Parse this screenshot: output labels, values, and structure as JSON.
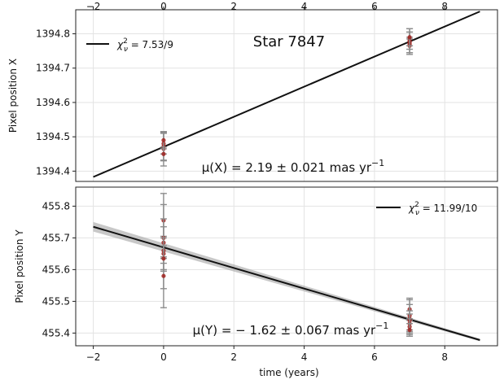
{
  "chart_data": [
    {
      "type": "scatter",
      "panel": "top",
      "title": "Star 7847",
      "xlabel": "",
      "ylabel": "Pixel position X",
      "xlim": [
        -2.5,
        9.5
      ],
      "ylim": [
        1394.37,
        1394.87
      ],
      "x_ticks": [
        -2,
        0,
        2,
        4,
        6,
        8
      ],
      "x_tick_labels": [
        "−2",
        "0",
        "2",
        "4",
        "6",
        "8"
      ],
      "y_ticks": [
        1394.4,
        1394.5,
        1394.6,
        1394.7,
        1394.8
      ],
      "y_tick_labels": [
        "1394.4",
        "1394.5",
        "1394.6",
        "1394.7",
        "1394.8"
      ],
      "grid": true,
      "legend_position": "top-left",
      "legend": [
        {
          "label": "χ²_ν = 7.53/9",
          "chi_text": "χ",
          "sub": "ν",
          "sup": "2",
          "value_text": " = 7.53/9"
        }
      ],
      "annotation": {
        "prefix": "μ(X) = 2.19 ± 0.021 mas yr",
        "sup": "−1"
      },
      "fit_line": {
        "x": [
          -2,
          9
        ],
        "y": [
          1394.383,
          1394.865
        ]
      },
      "band": null,
      "points": [
        {
          "x": 0,
          "y": 1394.465,
          "err": 0.05
        },
        {
          "x": 0,
          "y": 1394.472,
          "err": 0.04
        },
        {
          "x": 0,
          "y": 1394.48,
          "err": 0.03
        },
        {
          "x": 0,
          "y": 1394.49,
          "err": 0.025
        },
        {
          "x": 0,
          "y": 1394.45,
          "err": 0.02
        },
        {
          "x": 7,
          "y": 1394.765,
          "err": 0.025
        },
        {
          "x": 7,
          "y": 1394.775,
          "err": 0.03
        },
        {
          "x": 7,
          "y": 1394.78,
          "err": 0.035
        },
        {
          "x": 7,
          "y": 1394.785,
          "err": 0.02
        },
        {
          "x": 7,
          "y": 1394.77,
          "err": 0.015
        },
        {
          "x": 7,
          "y": 1394.79,
          "err": 0.025
        }
      ]
    },
    {
      "type": "scatter",
      "panel": "bottom",
      "title": "",
      "xlabel": "time (years)",
      "ylabel": "Pixel position Y",
      "xlim": [
        -2.5,
        9.5
      ],
      "ylim": [
        455.36,
        455.86
      ],
      "x_ticks": [
        -2,
        0,
        2,
        4,
        6,
        8
      ],
      "x_tick_labels": [
        "−2",
        "0",
        "2",
        "4",
        "6",
        "8"
      ],
      "y_ticks": [
        455.4,
        455.5,
        455.6,
        455.7,
        455.8
      ],
      "y_tick_labels": [
        "455.4",
        "455.5",
        "455.6",
        "455.7",
        "455.8"
      ],
      "grid": true,
      "legend_position": "top-right",
      "legend": [
        {
          "label": "χ²_ν = 11.99/10",
          "chi_text": "χ",
          "sub": "ν",
          "sup": "2",
          "value_text": " = 11.99/10"
        }
      ],
      "annotation": {
        "prefix": "μ(Y) = − 1.62 ± 0.067 mas yr",
        "sup": "−1"
      },
      "fit_line": {
        "x": [
          -2,
          9
        ],
        "y": [
          455.735,
          455.378
        ]
      },
      "band": {
        "x": [
          -2,
          9
        ],
        "y_low": [
          455.72,
          455.374
        ],
        "y_high": [
          455.75,
          455.382
        ]
      },
      "points": [
        {
          "x": 0,
          "y": 455.66,
          "err": 0.18
        },
        {
          "x": 0,
          "y": 455.755,
          "err": 0.05
        },
        {
          "x": 0,
          "y": 455.7,
          "err": 0.06
        },
        {
          "x": 0,
          "y": 455.685,
          "err": 0.05
        },
        {
          "x": 0,
          "y": 455.65,
          "err": 0.05
        },
        {
          "x": 0,
          "y": 455.635,
          "err": 0.04
        },
        {
          "x": 0,
          "y": 455.58,
          "err": 0.04
        },
        {
          "x": 7,
          "y": 455.475,
          "err": 0.035
        },
        {
          "x": 7,
          "y": 455.455,
          "err": 0.05
        },
        {
          "x": 7,
          "y": 455.445,
          "err": 0.045
        },
        {
          "x": 7,
          "y": 455.44,
          "err": 0.03
        },
        {
          "x": 7,
          "y": 455.43,
          "err": 0.03
        },
        {
          "x": 7,
          "y": 455.42,
          "err": 0.025
        },
        {
          "x": 7,
          "y": 455.41,
          "err": 0.02
        }
      ]
    }
  ]
}
